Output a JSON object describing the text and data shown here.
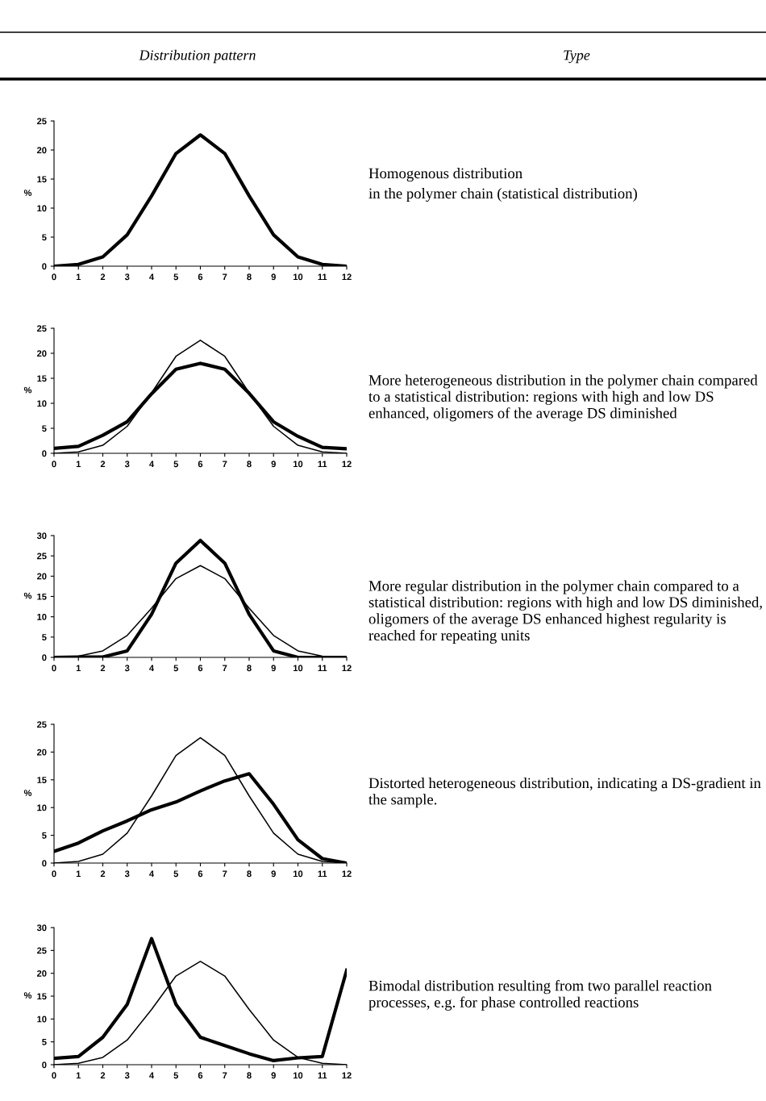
{
  "chart_data": [
    {
      "type": "line",
      "title": "Distribution pattern",
      "ylabel": "%",
      "x": [
        0,
        1,
        2,
        3,
        4,
        5,
        6,
        7,
        8,
        9,
        10,
        11,
        12
      ],
      "xlim": [
        0,
        12
      ],
      "xticks": [
        0,
        1,
        2,
        3,
        4,
        5,
        6,
        7,
        8,
        9,
        10,
        11,
        12
      ],
      "ylim": [
        0,
        25
      ],
      "yticks": [
        0,
        5,
        10,
        15,
        20,
        25
      ],
      "grid": false,
      "legend": false,
      "series": [
        {
          "color": "#000000",
          "values": [
            0,
            0.3,
            1.6,
            5.4,
            12.1,
            19.4,
            22.6,
            19.4,
            12.1,
            5.4,
            1.6,
            0.3,
            0
          ]
        }
      ],
      "annotations": [
        "Homogenous distribution",
        "in the polymer chain (statistical distribution)"
      ]
    },
    {
      "type": "line",
      "ylabel": "%",
      "x": [
        0,
        1,
        2,
        3,
        4,
        5,
        6,
        7,
        8,
        9,
        10,
        11,
        12
      ],
      "xlim": [
        0,
        12
      ],
      "xticks": [
        0,
        1,
        2,
        3,
        4,
        5,
        6,
        7,
        8,
        9,
        10,
        11,
        12
      ],
      "ylim": [
        0,
        25
      ],
      "yticks": [
        0,
        5,
        10,
        15,
        20,
        25
      ],
      "grid": false,
      "legend": false,
      "series": [
        {
          "color": "#000000",
          "values": [
            0,
            0.3,
            1.6,
            5.4,
            12.1,
            19.4,
            22.6,
            19.4,
            12.1,
            5.4,
            1.6,
            0.3,
            0
          ]
        },
        {
          "color": "#000000",
          "values": [
            1,
            1.4,
            3.6,
            6.3,
            11.9,
            16.8,
            18,
            16.8,
            12,
            6.3,
            3.4,
            1.2,
            0.9
          ]
        }
      ],
      "annotations": [
        "More heterogeneous distribution in the polymer chain compared to a statistical distribution: regions with high and low DS enhanced, oligomers of the average DS diminished"
      ]
    },
    {
      "type": "line",
      "ylabel": "%",
      "x": [
        0,
        1,
        2,
        3,
        4,
        5,
        6,
        7,
        8,
        9,
        10,
        11,
        12
      ],
      "xlim": [
        0,
        12
      ],
      "xticks": [
        0,
        1,
        2,
        3,
        4,
        5,
        6,
        7,
        8,
        9,
        10,
        11,
        12
      ],
      "ylim": [
        0,
        30
      ],
      "yticks": [
        0,
        5,
        10,
        15,
        20,
        25,
        30
      ],
      "grid": false,
      "legend": false,
      "series": [
        {
          "color": "#000000",
          "values": [
            0,
            0.3,
            1.6,
            5.4,
            12.1,
            19.4,
            22.6,
            19.4,
            12.1,
            5.4,
            1.6,
            0.3,
            0
          ]
        },
        {
          "color": "#000000",
          "values": [
            0,
            0.1,
            0.1,
            1.6,
            10.6,
            23.2,
            28.8,
            23.2,
            10.6,
            1.6,
            0,
            0,
            0
          ]
        }
      ],
      "annotations": [
        "More regular distribution in the polymer chain compared to a statistical distribution: regions with high and low DS diminished, oligomers of the average DS enhanced highest regularity is reached for repeating units"
      ]
    },
    {
      "type": "line",
      "ylabel": "%",
      "x": [
        0,
        1,
        2,
        3,
        4,
        5,
        6,
        7,
        8,
        9,
        10,
        11,
        12
      ],
      "xlim": [
        0,
        12
      ],
      "xticks": [
        0,
        1,
        2,
        3,
        4,
        5,
        6,
        7,
        8,
        9,
        10,
        11,
        12
      ],
      "ylim": [
        0,
        25
      ],
      "yticks": [
        0,
        5,
        10,
        15,
        20,
        25
      ],
      "grid": false,
      "legend": false,
      "series": [
        {
          "color": "#000000",
          "values": [
            0,
            0.3,
            1.6,
            5.4,
            12.1,
            19.4,
            22.6,
            19.4,
            12.1,
            5.4,
            1.6,
            0.3,
            0
          ]
        },
        {
          "color": "#000000",
          "values": [
            2.1,
            3.6,
            5.8,
            7.6,
            9.6,
            11,
            13,
            14.8,
            16.1,
            10.6,
            4.2,
            0.8,
            0
          ]
        }
      ],
      "annotations": [
        "Distorted heterogeneous distribution, indicating a DS-gradient in the sample."
      ]
    },
    {
      "type": "line",
      "ylabel": "%",
      "x": [
        0,
        1,
        2,
        3,
        4,
        5,
        6,
        7,
        8,
        9,
        10,
        11,
        12
      ],
      "xlim": [
        0,
        12
      ],
      "xticks": [
        0,
        1,
        2,
        3,
        4,
        5,
        6,
        7,
        8,
        9,
        10,
        11,
        12
      ],
      "ylim": [
        0,
        30
      ],
      "yticks": [
        0,
        5,
        10,
        15,
        20,
        25,
        30
      ],
      "grid": false,
      "legend": false,
      "series": [
        {
          "color": "#000000",
          "values": [
            0,
            0.3,
            1.6,
            5.4,
            12.1,
            19.4,
            22.6,
            19.4,
            12.1,
            5.4,
            1.6,
            0.3,
            0
          ]
        },
        {
          "color": "#000000",
          "values": [
            1.4,
            1.8,
            6,
            13.2,
            27.6,
            13.2,
            6,
            4.2,
            2.4,
            0.9,
            1.5,
            1.8,
            20.7
          ]
        }
      ],
      "annotations": [
        "Bimodal distribution resulting from two parallel reaction processes, e.g. for phase controlled reactions"
      ]
    },
    {
      "type": "other",
      "title": "Type"
    }
  ]
}
